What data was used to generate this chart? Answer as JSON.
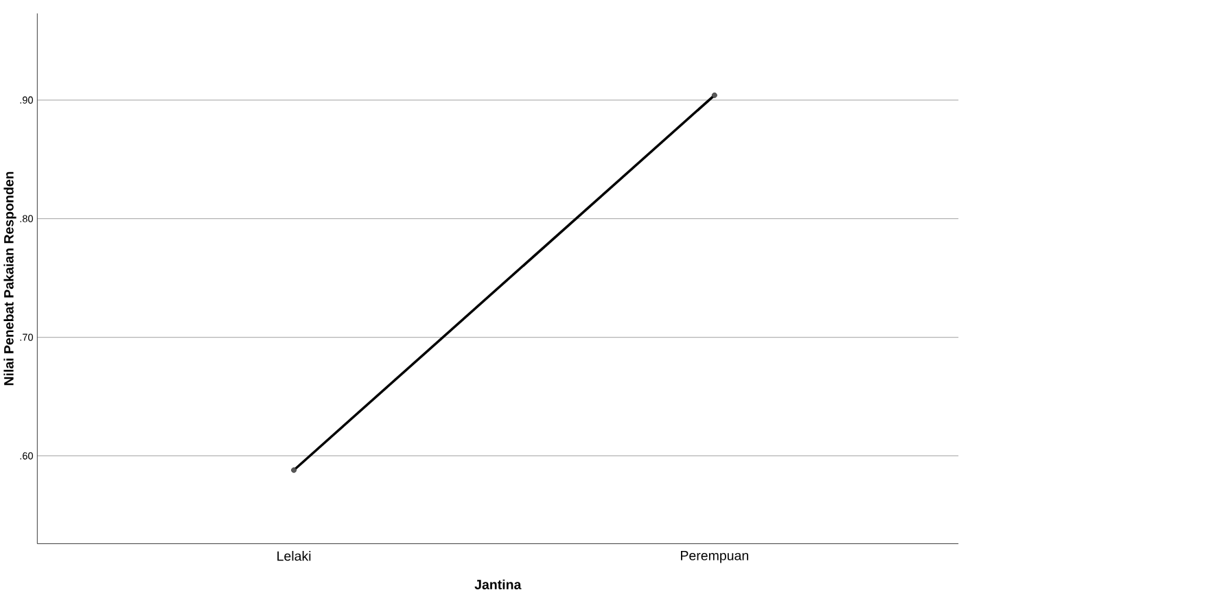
{
  "chart_data": {
    "type": "line",
    "xlabel": "Jantina",
    "ylabel": "Nilai Penebat Pakaian Responden",
    "categories": [
      "Lelaki",
      "Perempuan"
    ],
    "series": [
      {
        "color": "#000000",
        "values": [
          0.588,
          0.904
        ]
      }
    ],
    "ylim": [
      0.526,
      0.973
    ],
    "yticks": [
      {
        "value": 0.6,
        "label": ".60"
      },
      {
        "value": 0.7,
        "label": ".70"
      },
      {
        "value": 0.8,
        "label": ".80"
      },
      {
        "value": 0.9,
        "label": ".90"
      }
    ],
    "grid": "y",
    "marker": "circle",
    "line_style": "solid"
  }
}
